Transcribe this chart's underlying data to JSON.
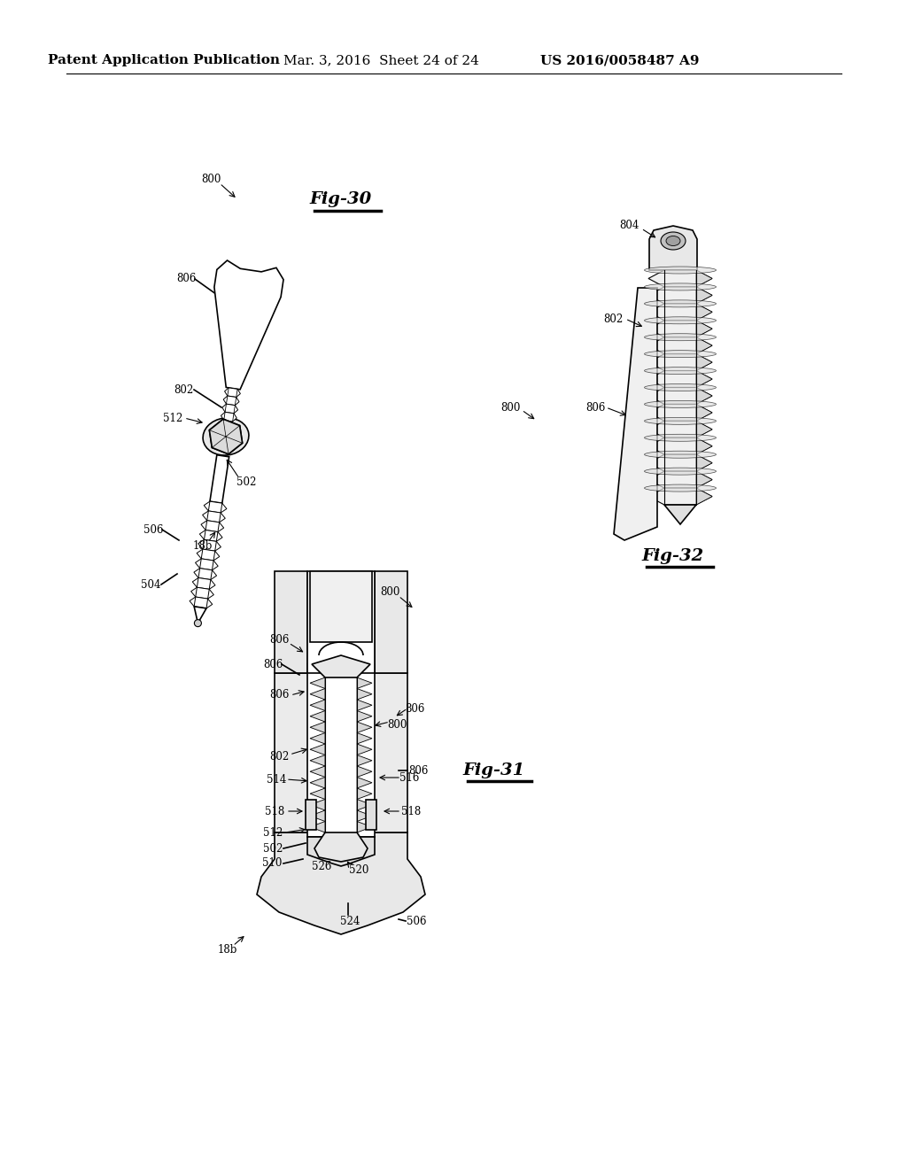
{
  "background_color": "#ffffff",
  "header_text_left": "Patent Application Publication",
  "header_text_mid": "Mar. 3, 2016  Sheet 24 of 24",
  "header_text_right": "US 2016/0058487 A9",
  "header_fontsize": 11,
  "fig30_label": "Fig-30",
  "fig31_label": "Fig-31",
  "fig32_label": "Fig-32",
  "line_color": "#000000",
  "lw_main": 1.2,
  "lw_thin": 0.7,
  "gray_fill": "#d8d8d8",
  "white_fill": "#ffffff",
  "label_fontsize": 8.5,
  "fig_label_fontsize": 14
}
